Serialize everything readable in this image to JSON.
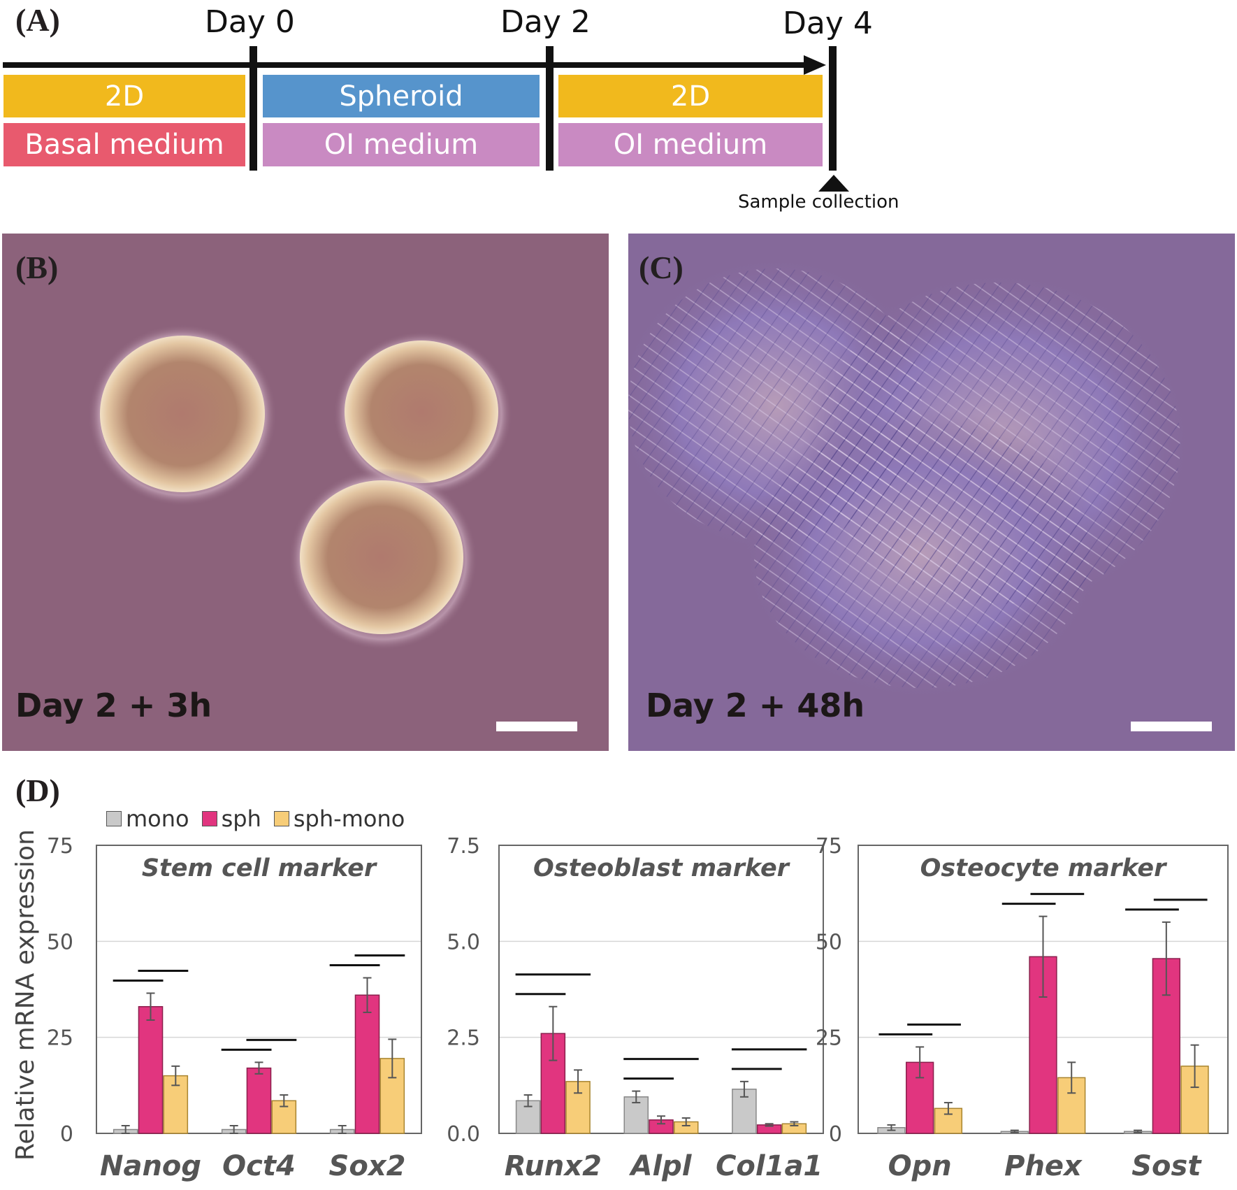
{
  "panels": {
    "a": {
      "letter": "(A)",
      "days": [
        "Day 0",
        "Day 2",
        "Day 4"
      ],
      "row1": [
        "2D",
        "Spheroid",
        "2D"
      ],
      "row2": [
        "Basal medium",
        "OI medium",
        "OI medium"
      ],
      "sample_label": "Sample collection",
      "colors": {
        "2d": "#f1b91d",
        "spheroid": "#5694cc",
        "basal": "#e85a6e",
        "oi": "#c98ac2"
      }
    },
    "b": {
      "letter": "(B)",
      "label": "Day 2 + 3h"
    },
    "c": {
      "letter": "(C)",
      "label": "Day 2 + 48h"
    },
    "d": {
      "letter": "(D)",
      "ylabel": "Relative mRNA expression",
      "legend": [
        "mono",
        "sph",
        "sph-mono"
      ],
      "colors": {
        "mono": "#c9c9c9",
        "sph": "#e1357f",
        "sph_mono": "#f7cd78"
      }
    }
  },
  "chart_data": [
    {
      "type": "bar",
      "title": "Stem cell marker",
      "categories": [
        "Nanog",
        "Oct4",
        "Sox2"
      ],
      "ylim": [
        0,
        75
      ],
      "yticks": [
        "0",
        "25",
        "50",
        "75"
      ],
      "series": [
        {
          "name": "mono",
          "values": [
            1,
            1,
            1
          ],
          "errors": [
            1,
            1,
            1
          ]
        },
        {
          "name": "sph",
          "values": [
            33,
            17,
            36
          ],
          "errors": [
            3.5,
            1.5,
            4.5
          ]
        },
        {
          "name": "sph-mono",
          "values": [
            15,
            8.5,
            19.5
          ],
          "errors": [
            2.5,
            1.5,
            5
          ]
        }
      ],
      "significance": [
        [
          0,
          1
        ],
        [
          1,
          2
        ]
      ]
    },
    {
      "type": "bar",
      "title": "Osteoblast marker",
      "categories": [
        "Runx2",
        "Alpl",
        "Col1a1"
      ],
      "ylim": [
        0,
        7.5
      ],
      "yticks": [
        "0.0",
        "2.5",
        "5.0",
        "7.5"
      ],
      "series": [
        {
          "name": "mono",
          "values": [
            0.85,
            0.95,
            1.15
          ],
          "errors": [
            0.15,
            0.15,
            0.2
          ]
        },
        {
          "name": "sph",
          "values": [
            2.6,
            0.35,
            0.22
          ],
          "errors": [
            0.7,
            0.1,
            0.03
          ]
        },
        {
          "name": "sph-mono",
          "values": [
            1.35,
            0.3,
            0.25
          ],
          "errors": [
            0.3,
            0.1,
            0.05
          ]
        }
      ],
      "significance": [
        [
          0,
          1
        ],
        [
          0,
          2
        ]
      ]
    },
    {
      "type": "bar",
      "title": "Osteocyte marker",
      "categories": [
        "Opn",
        "Phex",
        "Sost"
      ],
      "ylim": [
        0,
        75
      ],
      "yticks": [
        "0",
        "25",
        "50",
        "75"
      ],
      "series": [
        {
          "name": "mono",
          "values": [
            1.5,
            0.5,
            0.5
          ],
          "errors": [
            0.7,
            0.3,
            0.3
          ]
        },
        {
          "name": "sph",
          "values": [
            18.5,
            46,
            45.5
          ],
          "errors": [
            4,
            10.5,
            9.5
          ]
        },
        {
          "name": "sph-mono",
          "values": [
            6.5,
            14.5,
            17.5
          ],
          "errors": [
            1.5,
            4,
            5.5
          ]
        }
      ],
      "significance": [
        [
          0,
          1
        ],
        [
          1,
          2
        ]
      ]
    }
  ]
}
